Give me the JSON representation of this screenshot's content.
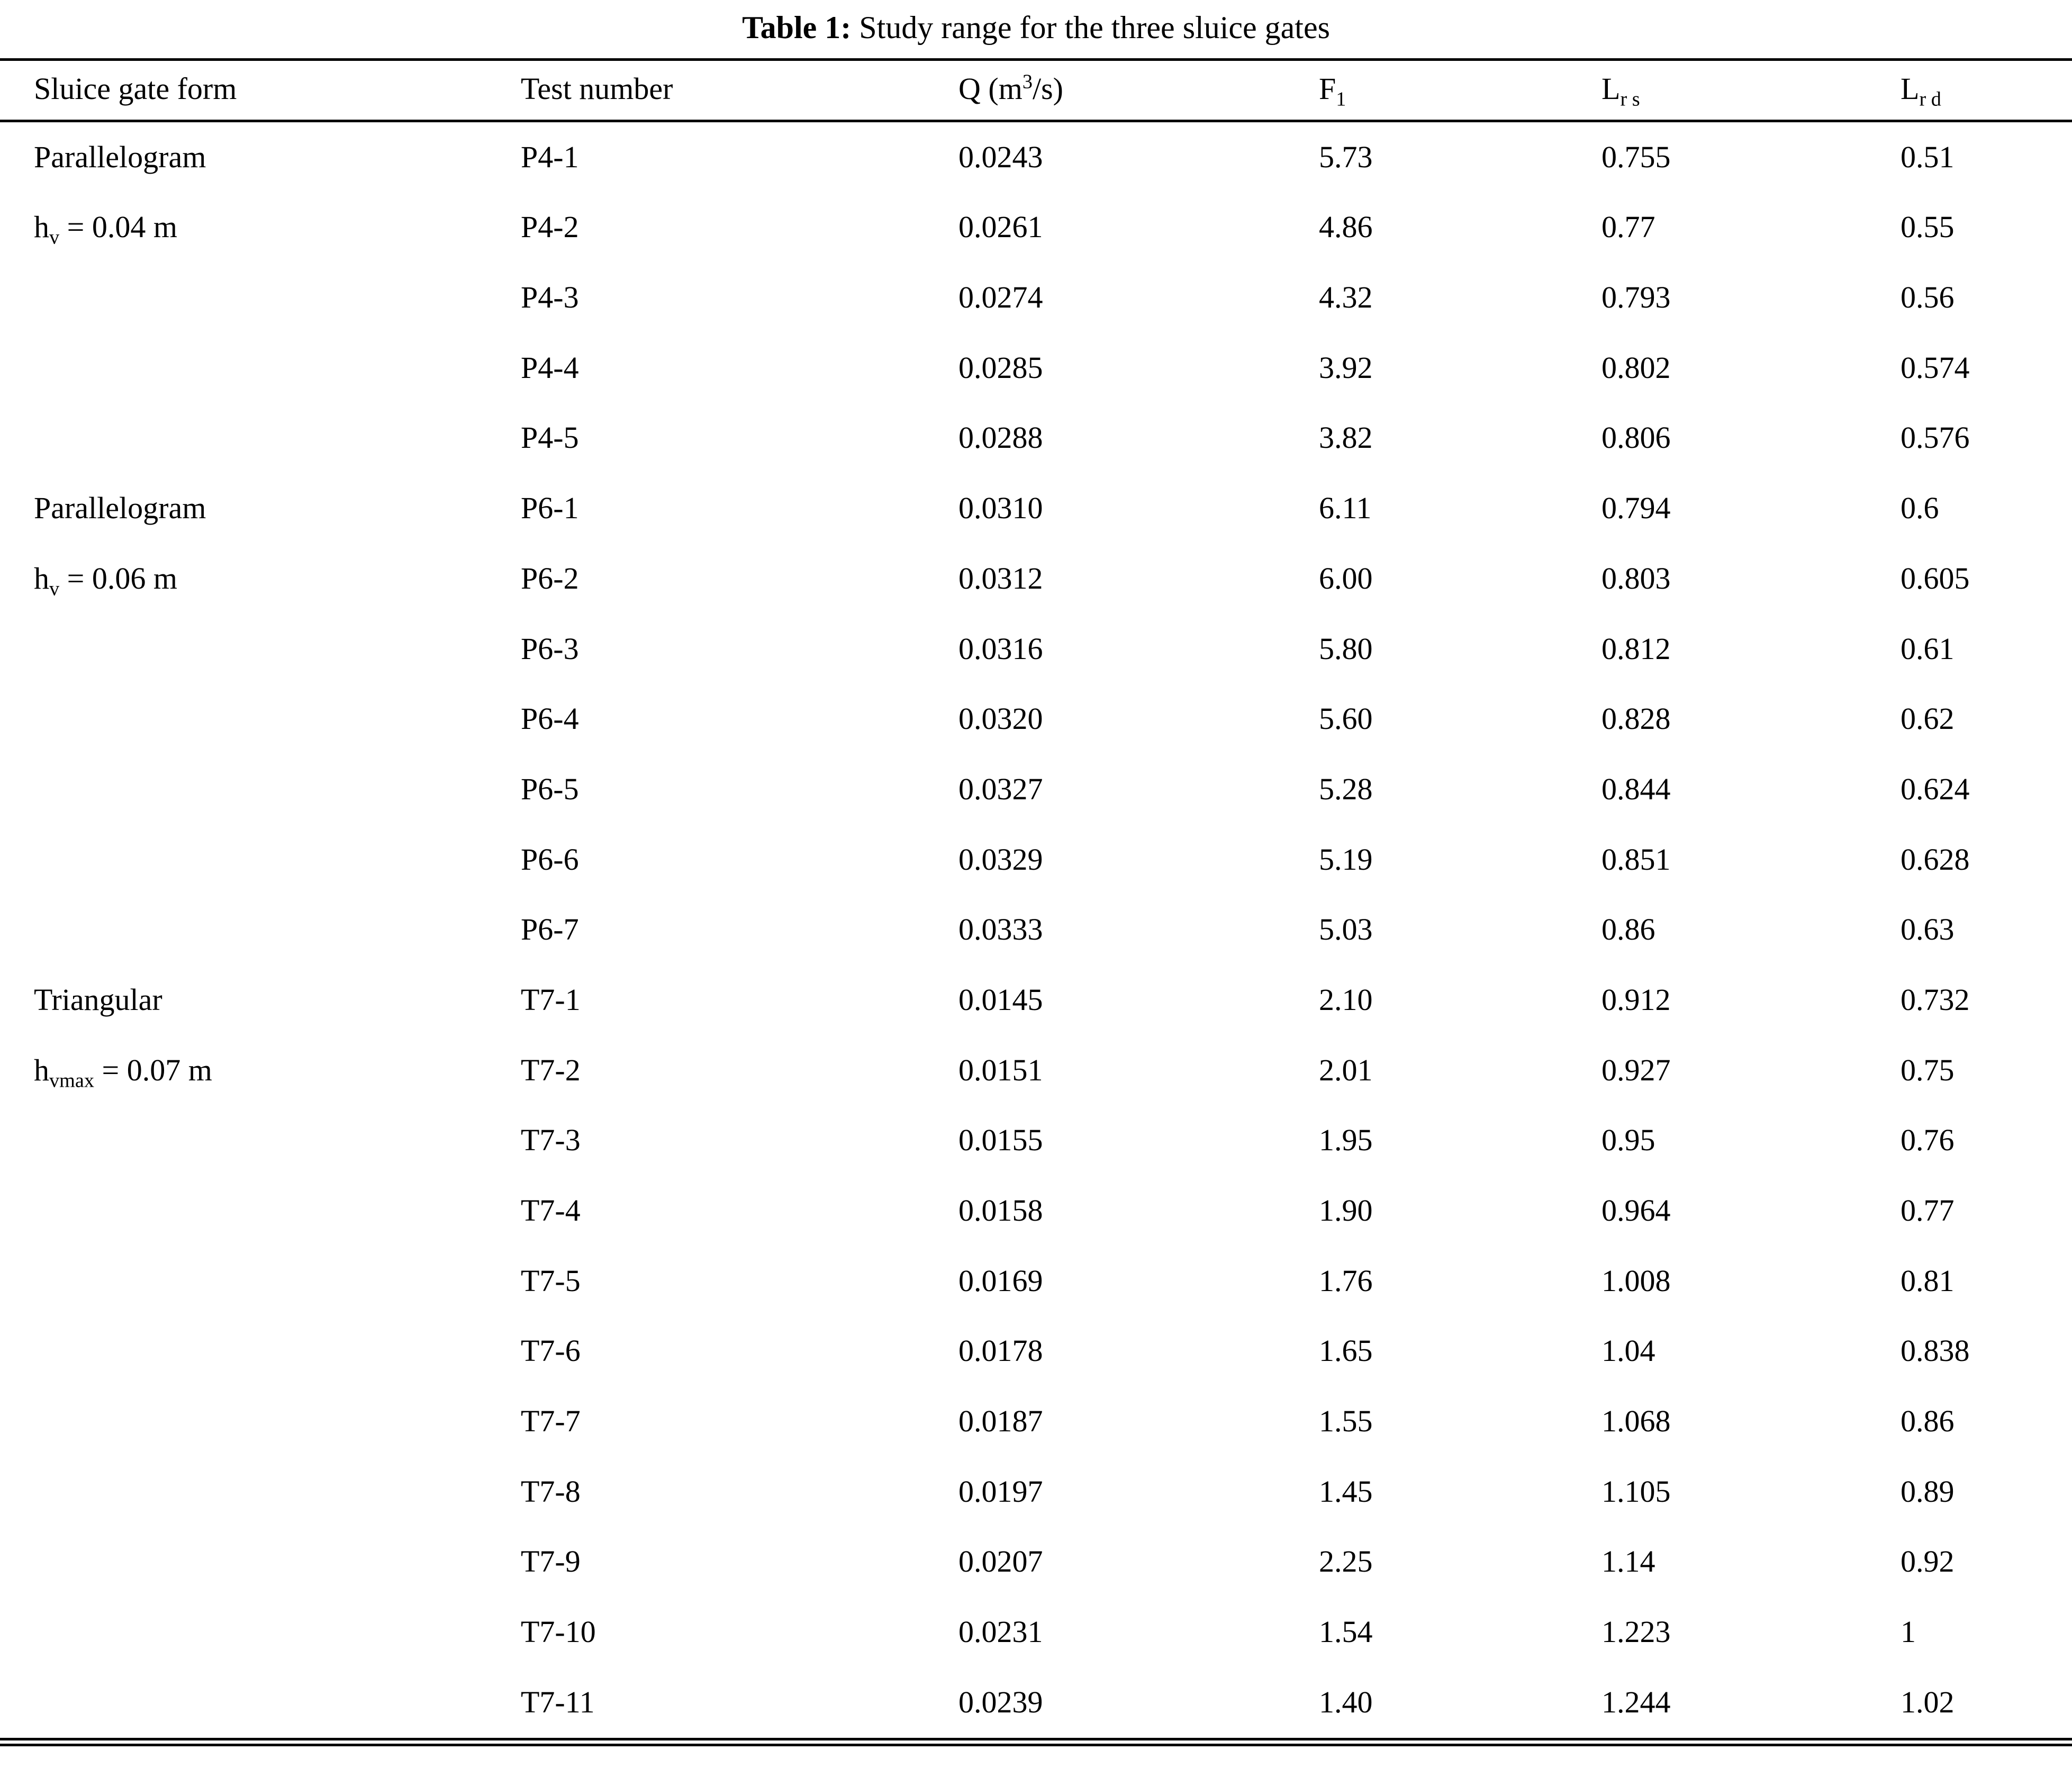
{
  "caption": {
    "label": "Table 1:",
    "text": "Study range for the three sluice gates"
  },
  "table": {
    "columns": [
      {
        "key": "form",
        "label": "Sluice gate form"
      },
      {
        "key": "test",
        "label": "Test number"
      },
      {
        "key": "q",
        "label": "Q (m^{3}/s)"
      },
      {
        "key": "f1",
        "label": "F_{1}"
      },
      {
        "key": "lrs",
        "label": "L_{r s}"
      },
      {
        "key": "lrd",
        "label": "L_{r d}"
      }
    ],
    "groups": [
      {
        "form_line1": "Parallelogram",
        "form_line2": "h_{v} = 0.04 m",
        "rows": [
          {
            "test": "P4-1",
            "q": "0.0243",
            "f1": "5.73",
            "lrs": "0.755",
            "lrd": "0.51"
          },
          {
            "test": "P4-2",
            "q": "0.0261",
            "f1": "4.86",
            "lrs": "0.77",
            "lrd": "0.55"
          },
          {
            "test": "P4-3",
            "q": "0.0274",
            "f1": "4.32",
            "lrs": "0.793",
            "lrd": "0.56"
          },
          {
            "test": "P4-4",
            "q": "0.0285",
            "f1": "3.92",
            "lrs": "0.802",
            "lrd": "0.574"
          },
          {
            "test": "P4-5",
            "q": "0.0288",
            "f1": "3.82",
            "lrs": "0.806",
            "lrd": "0.576"
          }
        ]
      },
      {
        "form_line1": "Parallelogram",
        "form_line2": "h_{v} = 0.06 m",
        "rows": [
          {
            "test": "P6-1",
            "q": "0.0310",
            "f1": "6.11",
            "lrs": "0.794",
            "lrd": "0.6"
          },
          {
            "test": "P6-2",
            "q": "0.0312",
            "f1": "6.00",
            "lrs": "0.803",
            "lrd": "0.605"
          },
          {
            "test": "P6-3",
            "q": "0.0316",
            "f1": "5.80",
            "lrs": "0.812",
            "lrd": "0.61"
          },
          {
            "test": "P6-4",
            "q": "0.0320",
            "f1": "5.60",
            "lrs": "0.828",
            "lrd": "0.62"
          },
          {
            "test": "P6-5",
            "q": "0.0327",
            "f1": "5.28",
            "lrs": "0.844",
            "lrd": "0.624"
          },
          {
            "test": "P6-6",
            "q": "0.0329",
            "f1": "5.19",
            "lrs": "0.851",
            "lrd": "0.628"
          },
          {
            "test": "P6-7",
            "q": "0.0333",
            "f1": "5.03",
            "lrs": "0.86",
            "lrd": "0.63"
          }
        ]
      },
      {
        "form_line1": "Triangular",
        "form_line2": "h_{vmax} = 0.07 m",
        "rows": [
          {
            "test": "T7-1",
            "q": "0.0145",
            "f1": "2.10",
            "lrs": "0.912",
            "lrd": "0.732"
          },
          {
            "test": "T7-2",
            "q": "0.0151",
            "f1": "2.01",
            "lrs": "0.927",
            "lrd": "0.75"
          },
          {
            "test": "T7-3",
            "q": "0.0155",
            "f1": "1.95",
            "lrs": "0.95",
            "lrd": "0.76"
          },
          {
            "test": "T7-4",
            "q": "0.0158",
            "f1": "1.90",
            "lrs": "0.964",
            "lrd": "0.77"
          },
          {
            "test": "T7-5",
            "q": "0.0169",
            "f1": "1.76",
            "lrs": "1.008",
            "lrd": "0.81"
          },
          {
            "test": "T7-6",
            "q": "0.0178",
            "f1": "1.65",
            "lrs": "1.04",
            "lrd": "0.838"
          },
          {
            "test": "T7-7",
            "q": "0.0187",
            "f1": "1.55",
            "lrs": "1.068",
            "lrd": "0.86"
          },
          {
            "test": "T7-8",
            "q": "0.0197",
            "f1": "1.45",
            "lrs": "1.105",
            "lrd": "0.89"
          },
          {
            "test": "T7-9",
            "q": "0.0207",
            "f1": "2.25",
            "lrs": "1.14",
            "lrd": "0.92"
          },
          {
            "test": "T7-10",
            "q": "0.0231",
            "f1": "1.54",
            "lrs": "1.223",
            "lrd": "1"
          },
          {
            "test": "T7-11",
            "q": "0.0239",
            "f1": "1.40",
            "lrs": "1.244",
            "lrd": "1.02"
          }
        ]
      }
    ]
  }
}
